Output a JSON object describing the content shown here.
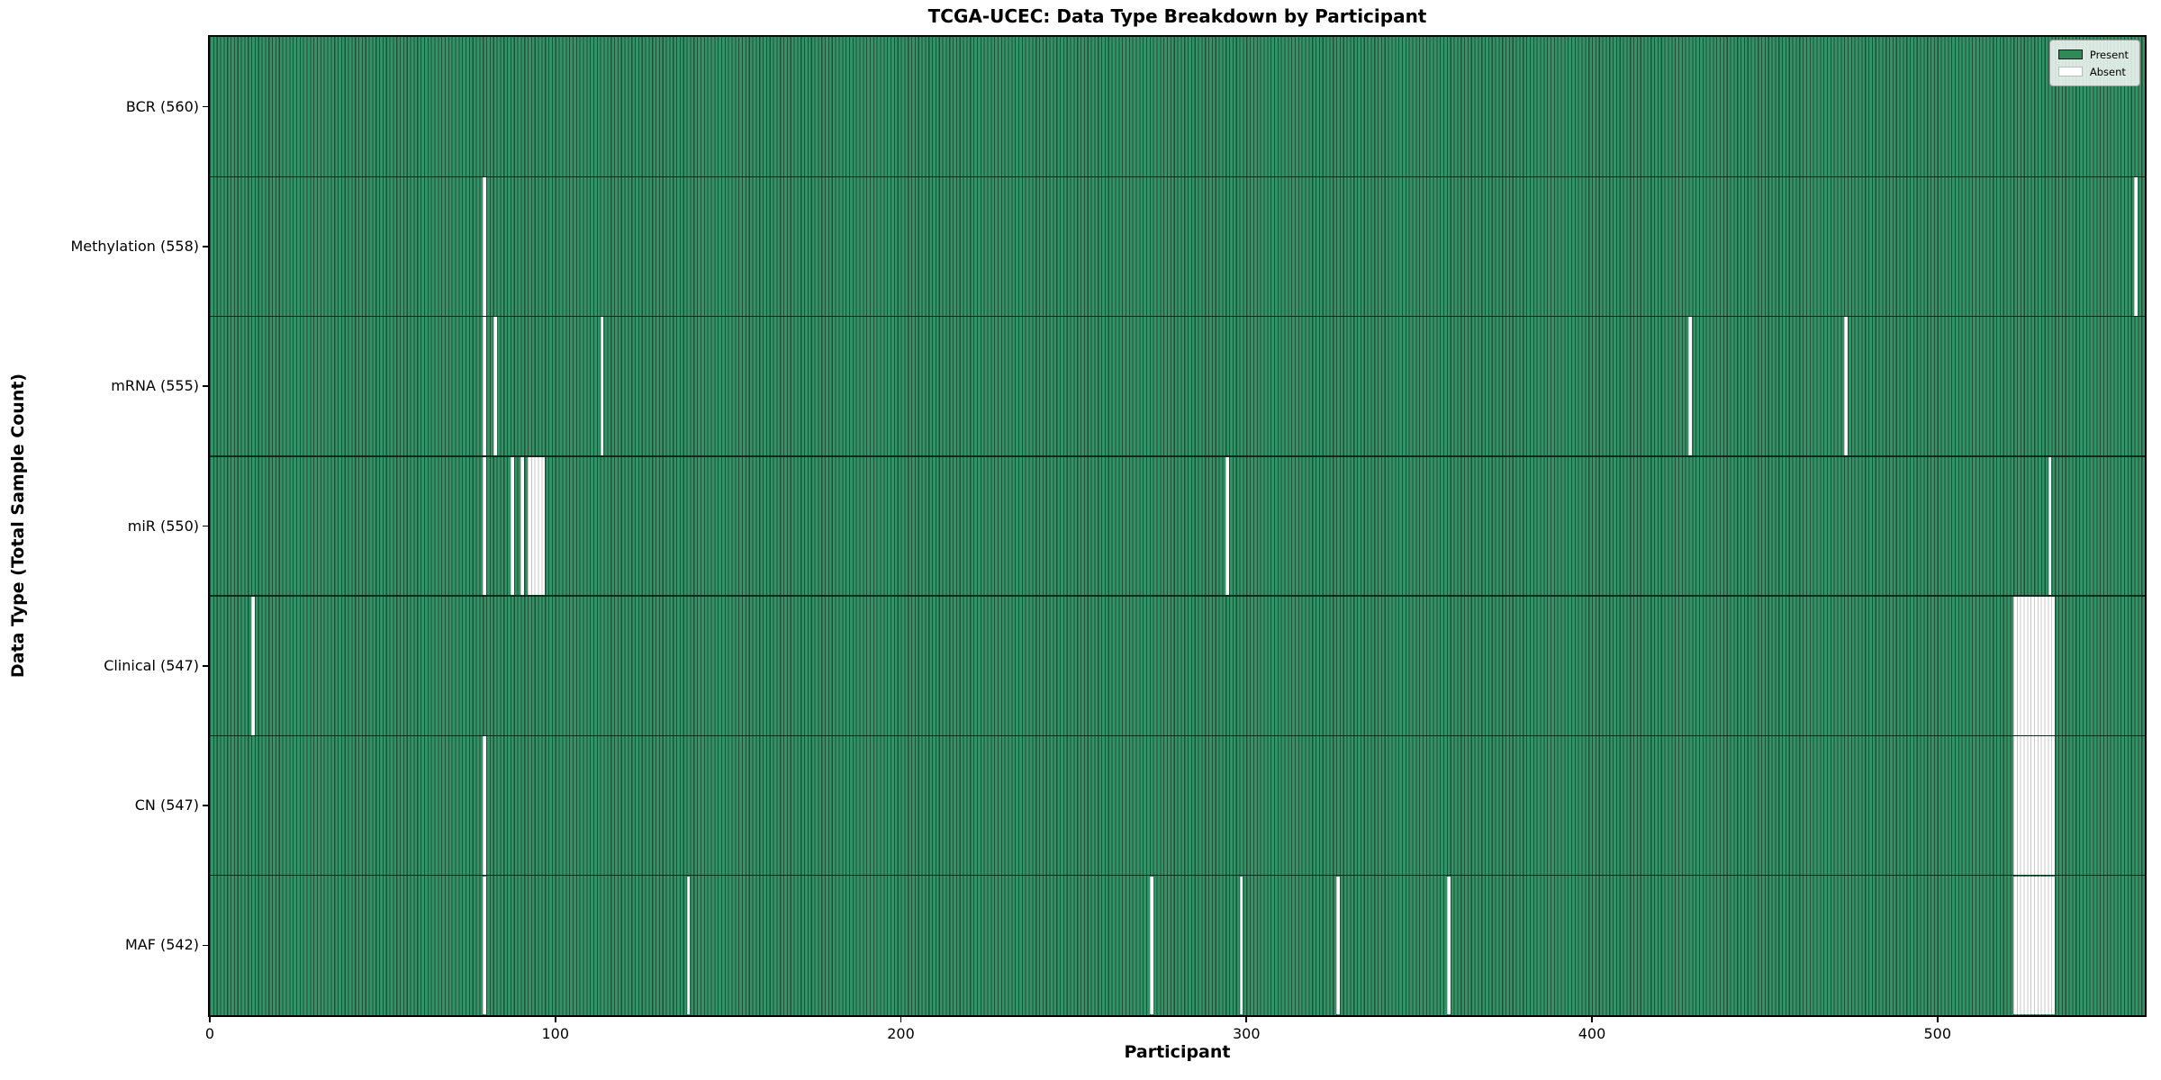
{
  "chart_data": {
    "type": "heatmap",
    "title": "TCGA-UCEC: Data Type Breakdown by Participant",
    "xlabel": "Participant",
    "ylabel": "Data Type (Total Sample Count)",
    "x_ticks": [
      0,
      100,
      200,
      300,
      400,
      500
    ],
    "n_participants": 560,
    "grid": false,
    "legend_position": "upper right",
    "legend": {
      "present_label": "Present",
      "absent_label": "Absent"
    },
    "colors": {
      "present_fill": "#359167",
      "present_edge": "#1f5135",
      "absent_fill": "#ffffff",
      "absent_edge": "#c7c7c7"
    },
    "rows": [
      {
        "label": "BCR (560)",
        "data_type": "BCR",
        "present_count": 560,
        "absent_segments": []
      },
      {
        "label": "Methylation (558)",
        "data_type": "Methylation",
        "present_count": 558,
        "absent_segments": [
          {
            "start": 79,
            "count": 1
          },
          {
            "start": 557,
            "count": 1
          }
        ]
      },
      {
        "label": "mRNA (555)",
        "data_type": "mRNA",
        "present_count": 555,
        "absent_segments": [
          {
            "start": 79,
            "count": 1
          },
          {
            "start": 82,
            "count": 1
          },
          {
            "start": 113,
            "count": 1
          },
          {
            "start": 428,
            "count": 1
          },
          {
            "start": 473,
            "count": 1
          }
        ]
      },
      {
        "label": "miR (550)",
        "data_type": "miR",
        "present_count": 550,
        "absent_segments": [
          {
            "start": 79,
            "count": 1
          },
          {
            "start": 87,
            "count": 1
          },
          {
            "start": 90,
            "count": 1
          },
          {
            "start": 92,
            "count": 5
          },
          {
            "start": 294,
            "count": 1
          },
          {
            "start": 532,
            "count": 1
          }
        ]
      },
      {
        "label": "Clinical (547)",
        "data_type": "Clinical",
        "present_count": 547,
        "absent_segments": [
          {
            "start": 12,
            "count": 1
          },
          {
            "start": 522,
            "count": 12
          }
        ]
      },
      {
        "label": "CN (547)",
        "data_type": "CN",
        "present_count": 547,
        "absent_segments": [
          {
            "start": 79,
            "count": 1
          },
          {
            "start": 522,
            "count": 12
          }
        ]
      },
      {
        "label": "MAF (542)",
        "data_type": "MAF",
        "present_count": 542,
        "absent_segments": [
          {
            "start": 79,
            "count": 1
          },
          {
            "start": 138,
            "count": 1
          },
          {
            "start": 272,
            "count": 1
          },
          {
            "start": 298,
            "count": 1
          },
          {
            "start": 326,
            "count": 1
          },
          {
            "start": 358,
            "count": 1
          },
          {
            "start": 522,
            "count": 12
          }
        ]
      }
    ]
  }
}
